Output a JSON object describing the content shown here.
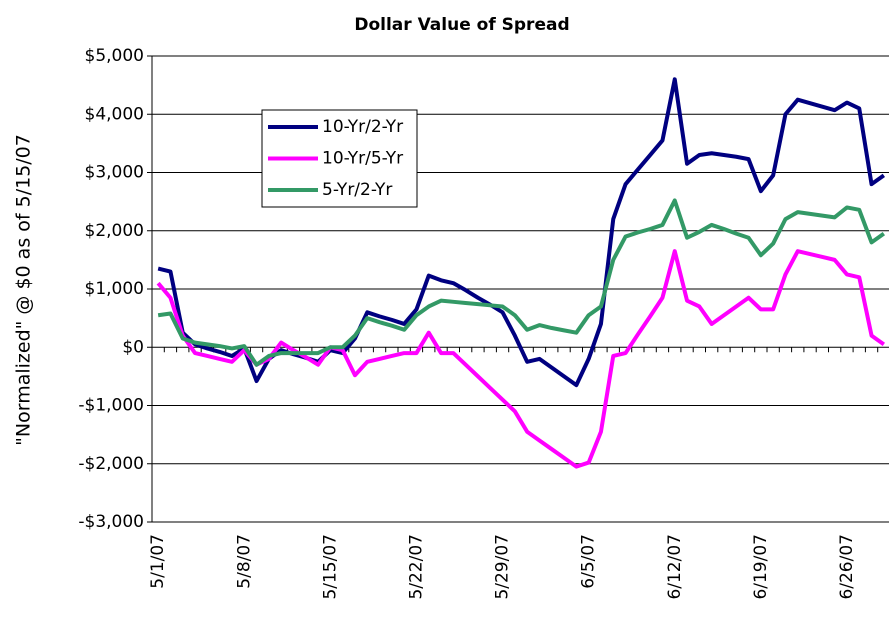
{
  "chart_data": {
    "type": "line",
    "title": "Dollar Value of Spread",
    "y_label": "\"Normalized\" @ $0 as of 5/15/07",
    "categories": [
      "5/1/07",
      null,
      null,
      null,
      null,
      null,
      null,
      "5/8/07",
      null,
      null,
      null,
      null,
      null,
      null,
      "5/15/07",
      null,
      null,
      null,
      null,
      null,
      null,
      "5/22/07",
      null,
      null,
      null,
      null,
      null,
      null,
      "5/29/07",
      null,
      null,
      null,
      null,
      null,
      null,
      "6/5/07",
      null,
      null,
      null,
      null,
      null,
      null,
      "6/12/07",
      null,
      null,
      null,
      null,
      null,
      null,
      "6/19/07",
      null,
      null,
      null,
      null,
      null,
      null,
      "6/26/07",
      null,
      null,
      null
    ],
    "series": [
      {
        "name": "10-Yr/2-Yr",
        "color": "#000080",
        "values": [
          1350,
          1300,
          250,
          50,
          -20,
          -80,
          -150,
          -20,
          -580,
          -200,
          -50,
          -120,
          -180,
          -250,
          -50,
          -100,
          150,
          600,
          530,
          470,
          400,
          650,
          1230,
          1150,
          1100,
          980,
          850,
          730,
          600,
          200,
          -250,
          -200,
          -350,
          -500,
          -650,
          -200,
          400,
          2200,
          2800,
          3050,
          3300,
          3550,
          4600,
          3150,
          3300,
          3330,
          3300,
          3270,
          3230,
          2680,
          2950,
          4000,
          4250,
          4190,
          4130,
          4070,
          4200,
          4100,
          2800,
          2950
        ]
      },
      {
        "name": "10-Yr/5-Yr",
        "color": "#ff00ff",
        "values": [
          1100,
          850,
          200,
          -100,
          -150,
          -200,
          -250,
          -50,
          -300,
          -200,
          80,
          -50,
          -170,
          -300,
          0,
          -50,
          -480,
          -250,
          -200,
          -150,
          -100,
          -100,
          250,
          -100,
          -100,
          -300,
          -500,
          -700,
          -900,
          -1100,
          -1450,
          -1600,
          -1750,
          -1900,
          -2050,
          -1980,
          -1450,
          -150,
          -100,
          220,
          530,
          850,
          1650,
          800,
          700,
          400,
          550,
          700,
          850,
          650,
          650,
          1250,
          1650,
          1600,
          1550,
          1500,
          1250,
          1200,
          200,
          50
        ]
      },
      {
        "name": "5-Yr/2-Yr",
        "color": "#339966",
        "values": [
          550,
          580,
          150,
          80,
          50,
          20,
          -20,
          20,
          -300,
          -150,
          -100,
          -100,
          -100,
          -100,
          0,
          0,
          200,
          500,
          430,
          370,
          300,
          550,
          700,
          800,
          780,
          760,
          740,
          720,
          700,
          550,
          300,
          380,
          330,
          290,
          250,
          550,
          700,
          1500,
          1900,
          1970,
          2030,
          2100,
          2520,
          1880,
          1980,
          2100,
          2030,
          1950,
          1880,
          1580,
          1780,
          2200,
          2320,
          2290,
          2260,
          2230,
          2400,
          2360,
          1800,
          1950
        ]
      }
    ],
    "ylim": [
      -3000,
      5000
    ],
    "yticks": [
      {
        "value": -3000,
        "label": "-$3,000"
      },
      {
        "value": -2000,
        "label": "-$2,000"
      },
      {
        "value": -1000,
        "label": "-$1,000"
      },
      {
        "value": 0,
        "label": "$0"
      },
      {
        "value": 1000,
        "label": "$1,000"
      },
      {
        "value": 2000,
        "label": "$2,000"
      },
      {
        "value": 3000,
        "label": "$3,000"
      },
      {
        "value": 4000,
        "label": "$4,000"
      },
      {
        "value": 5000,
        "label": "$5,000"
      }
    ],
    "grid": true,
    "legend": "upper left"
  }
}
